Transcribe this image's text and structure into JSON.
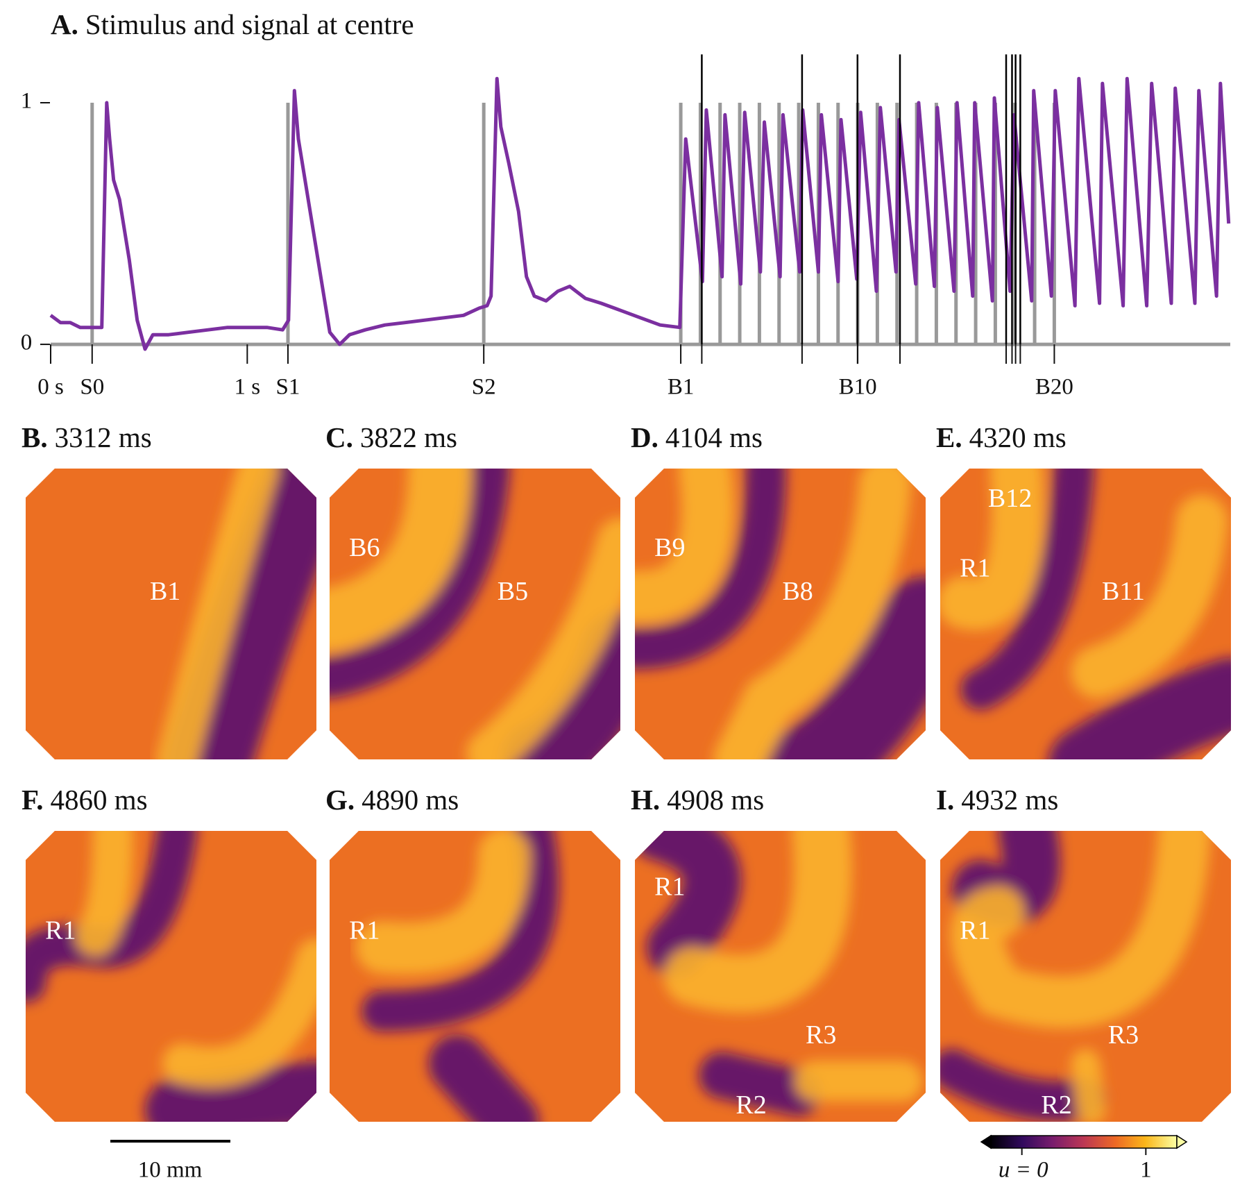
{
  "chart_data": {
    "type": "line",
    "letter": "A.",
    "title": "Stimulus and signal at centre",
    "xlim": [
      0,
      6000
    ],
    "ylim": [
      -0.04,
      1.2
    ],
    "yticks": [
      0,
      1
    ],
    "xticks": [
      {
        "value": 0,
        "label": "0 s"
      },
      {
        "value": 211,
        "label": "S0"
      },
      {
        "value": 1000,
        "label": "1 s"
      },
      {
        "value": 1207,
        "label": "S1"
      },
      {
        "value": 2203,
        "label": "S2"
      },
      {
        "value": 3205,
        "label": "B1"
      },
      {
        "value": 4105,
        "label": "B10"
      },
      {
        "value": 5105,
        "label": "B20"
      }
    ],
    "stimulus": {
      "color": "#999999",
      "x": [
        211,
        1207,
        2203,
        3205,
        3305,
        3405,
        3505,
        3605,
        3705,
        3805,
        3905,
        4005,
        4105,
        4205,
        4305,
        4405,
        4505,
        4605,
        4705,
        4805,
        4905,
        5005,
        5105
      ],
      "values": [
        1,
        1,
        1,
        1,
        1,
        1,
        1,
        1,
        1,
        1,
        1,
        1,
        1,
        1,
        1,
        1,
        1,
        1,
        1,
        1,
        1,
        1,
        1
      ]
    },
    "series": [
      {
        "color": "#7b2fa0",
        "x": [
          0,
          50,
          100,
          150,
          200,
          260,
          285,
          300,
          320,
          350,
          400,
          440,
          480,
          520,
          600,
          700,
          800,
          900,
          1000,
          1100,
          1180,
          1210,
          1240,
          1260,
          1300,
          1360,
          1420,
          1470,
          1520,
          1600,
          1700,
          1800,
          1900,
          2000,
          2100,
          2180,
          2220,
          2240,
          2270,
          2290,
          2330,
          2380,
          2420,
          2460,
          2520,
          2580,
          2640,
          2720,
          2800,
          2900,
          3000,
          3100,
          3200,
          3230,
          3315,
          3335,
          3415,
          3430,
          3510,
          3530,
          3610,
          3630,
          3710,
          3725,
          3810,
          3825,
          3905,
          3920,
          4005,
          4020,
          4100,
          4120,
          4200,
          4220,
          4300,
          4315,
          4400,
          4415,
          4495,
          4510,
          4595,
          4610,
          4690,
          4700,
          4790,
          4800,
          4880,
          4900,
          4990,
          5000,
          5090,
          5110,
          5210,
          5230,
          5335,
          5350,
          5455,
          5475,
          5575,
          5600,
          5700,
          5720,
          5820,
          5840,
          5930,
          5950,
          5992
        ],
        "values": [
          0.12,
          0.09,
          0.09,
          0.07,
          0.07,
          0.07,
          1.0,
          0.85,
          0.68,
          0.6,
          0.35,
          0.1,
          -0.02,
          0.04,
          0.04,
          0.05,
          0.06,
          0.07,
          0.07,
          0.07,
          0.06,
          0.1,
          1.05,
          0.85,
          0.65,
          0.35,
          0.05,
          0.0,
          0.04,
          0.06,
          0.08,
          0.09,
          0.1,
          0.11,
          0.12,
          0.15,
          0.16,
          0.2,
          1.1,
          0.9,
          0.75,
          0.55,
          0.28,
          0.2,
          0.18,
          0.22,
          0.24,
          0.19,
          0.17,
          0.14,
          0.11,
          0.08,
          0.07,
          0.85,
          0.26,
          0.97,
          0.28,
          0.95,
          0.25,
          0.96,
          0.3,
          0.92,
          0.28,
          0.95,
          0.3,
          0.97,
          0.3,
          0.95,
          0.26,
          0.93,
          0.27,
          0.96,
          0.22,
          0.98,
          0.3,
          0.93,
          0.25,
          1.0,
          0.24,
          0.98,
          0.22,
          1.0,
          0.2,
          1.0,
          0.18,
          1.02,
          0.22,
          0.95,
          0.18,
          1.05,
          0.2,
          1.05,
          0.16,
          1.1,
          0.17,
          1.08,
          0.16,
          1.1,
          0.16,
          1.08,
          0.17,
          1.06,
          0.17,
          1.05,
          0.2,
          1.08,
          0.5
        ]
      }
    ],
    "panels": [
      {
        "letter": "B.",
        "time": {
          "value": 3312,
          "label": "3312 ms"
        },
        "labels": [
          "B1"
        ]
      },
      {
        "letter": "C.",
        "time": {
          "value": 3822,
          "label": "3822 ms"
        },
        "labels": [
          "B6",
          "B5"
        ]
      },
      {
        "letter": "D.",
        "time": {
          "value": 4104,
          "label": "4104 ms"
        },
        "labels": [
          "B9",
          "B8"
        ]
      },
      {
        "letter": "E.",
        "time": {
          "value": 4320,
          "label": "4320 ms"
        },
        "labels": [
          "B12",
          "R1",
          "B11"
        ]
      },
      {
        "letter": "F.",
        "time": {
          "value": 4860,
          "label": "4860 ms"
        },
        "labels": [
          "R1"
        ]
      },
      {
        "letter": "G.",
        "time": {
          "value": 4890,
          "label": "4890 ms"
        },
        "labels": [
          "R1"
        ]
      },
      {
        "letter": "H.",
        "time": {
          "value": 4908,
          "label": "4908 ms"
        },
        "labels": [
          "R1",
          "R3",
          "R2"
        ]
      },
      {
        "letter": "I.",
        "time": {
          "value": 4932,
          "label": "4932 ms"
        },
        "labels": [
          "R1",
          "R3",
          "R2"
        ]
      }
    ],
    "scale_bar": {
      "label": "10 mm"
    },
    "colorbar": {
      "clim": [
        -0.25,
        1.25
      ],
      "ticks": [
        {
          "value": 0,
          "label": "u = 0"
        },
        {
          "value": 1,
          "label": "1"
        }
      ]
    }
  }
}
